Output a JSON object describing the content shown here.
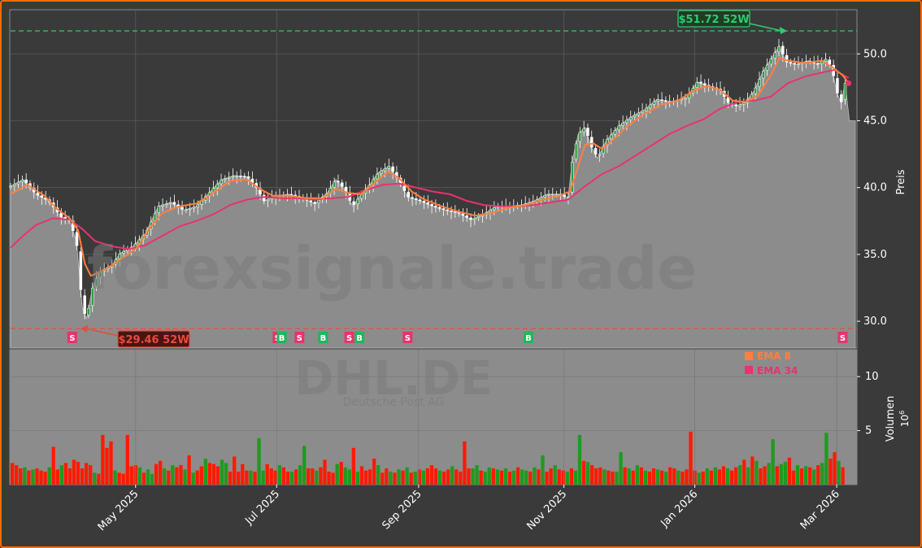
{
  "chart_data": {
    "type": "candlestick",
    "ticker": "DHL.DE",
    "company": "Deutsche Post AG",
    "watermark": "forexsignale.trade",
    "price_axis": {
      "label": "Preis",
      "ticks": [
        "30.0",
        "35.0",
        "40.0",
        "45.0",
        "50.0"
      ],
      "ylim": [
        28,
        53.3
      ]
    },
    "volume_axis": {
      "label": "Volumen",
      "exponent": "10",
      "exponent_power": "6",
      "ticks": [
        "5",
        "10"
      ],
      "ylim": [
        0,
        12.5
      ]
    },
    "x_ticks": [
      "May 2025",
      "Jul 2025",
      "Sep 2025",
      "Nov 2025",
      "Jan 2026",
      "Mar 2026"
    ],
    "high_52w": {
      "label": "$51.72 52W",
      "value": 51.72
    },
    "low_52w": {
      "label": "$29.46 52W",
      "value": 29.46
    },
    "legend": [
      {
        "name": "EMA 8",
        "color": "#ff7f3f"
      },
      {
        "name": "EMA 34",
        "color": "#e8336d"
      }
    ],
    "signals": [
      {
        "type": "S",
        "position": 0.073
      },
      {
        "type": "B",
        "position": 0.147
      },
      {
        "type": "S",
        "position": 0.316
      },
      {
        "type": "B",
        "position": 0.321
      },
      {
        "type": "S",
        "position": 0.342
      },
      {
        "type": "B",
        "position": 0.37
      },
      {
        "type": "S",
        "position": 0.401
      },
      {
        "type": "B",
        "position": 0.413
      },
      {
        "type": "S",
        "position": 0.47
      },
      {
        "type": "B",
        "position": 0.613
      },
      {
        "type": "S",
        "position": 0.985
      }
    ],
    "close_path": [
      [
        0,
        40.1
      ],
      [
        0.015,
        40.6
      ],
      [
        0.03,
        39.5
      ],
      [
        0.045,
        39.0
      ],
      [
        0.06,
        37.8
      ],
      [
        0.07,
        37.5
      ],
      [
        0.078,
        36.0
      ],
      [
        0.085,
        31.0
      ],
      [
        0.09,
        30.2
      ],
      [
        0.097,
        32.5
      ],
      [
        0.105,
        33.7
      ],
      [
        0.12,
        34.2
      ],
      [
        0.13,
        35.1
      ],
      [
        0.145,
        35.6
      ],
      [
        0.16,
        36.6
      ],
      [
        0.175,
        38.6
      ],
      [
        0.19,
        38.9
      ],
      [
        0.205,
        38.3
      ],
      [
        0.22,
        38.6
      ],
      [
        0.235,
        39.6
      ],
      [
        0.25,
        40.6
      ],
      [
        0.265,
        40.9
      ],
      [
        0.28,
        40.8
      ],
      [
        0.29,
        40.1
      ],
      [
        0.3,
        39.0
      ],
      [
        0.315,
        39.4
      ],
      [
        0.33,
        39.5
      ],
      [
        0.345,
        39.2
      ],
      [
        0.36,
        38.8
      ],
      [
        0.375,
        39.6
      ],
      [
        0.385,
        40.6
      ],
      [
        0.395,
        39.9
      ],
      [
        0.405,
        38.6
      ],
      [
        0.415,
        39.5
      ],
      [
        0.425,
        40.2
      ],
      [
        0.435,
        41.1
      ],
      [
        0.448,
        41.6
      ],
      [
        0.46,
        40.5
      ],
      [
        0.47,
        39.3
      ],
      [
        0.485,
        39.0
      ],
      [
        0.5,
        38.6
      ],
      [
        0.515,
        38.3
      ],
      [
        0.53,
        38.1
      ],
      [
        0.545,
        37.6
      ],
      [
        0.56,
        38.0
      ],
      [
        0.575,
        38.6
      ],
      [
        0.59,
        38.6
      ],
      [
        0.605,
        38.7
      ],
      [
        0.62,
        39.0
      ],
      [
        0.635,
        39.5
      ],
      [
        0.65,
        39.5
      ],
      [
        0.66,
        39.2
      ],
      [
        0.665,
        42.0
      ],
      [
        0.672,
        44.0
      ],
      [
        0.68,
        44.5
      ],
      [
        0.688,
        43.0
      ],
      [
        0.695,
        42.2
      ],
      [
        0.705,
        43.5
      ],
      [
        0.72,
        44.6
      ],
      [
        0.735,
        45.3
      ],
      [
        0.75,
        45.8
      ],
      [
        0.765,
        46.6
      ],
      [
        0.78,
        46.4
      ],
      [
        0.8,
        46.7
      ],
      [
        0.813,
        47.9
      ],
      [
        0.825,
        47.6
      ],
      [
        0.84,
        47.3
      ],
      [
        0.85,
        46.3
      ],
      [
        0.86,
        46.1
      ],
      [
        0.87,
        46.4
      ],
      [
        0.88,
        47.2
      ],
      [
        0.89,
        48.6
      ],
      [
        0.9,
        49.6
      ],
      [
        0.91,
        50.6
      ],
      [
        0.918,
        49.4
      ],
      [
        0.93,
        49.2
      ],
      [
        0.945,
        49.5
      ],
      [
        0.955,
        49.2
      ],
      [
        0.965,
        49.6
      ],
      [
        0.972,
        49.0
      ],
      [
        0.978,
        47.2
      ],
      [
        0.983,
        46.3
      ],
      [
        0.988,
        47.8
      ],
      [
        0.993,
        45.0
      ],
      [
        1.0,
        45.0
      ]
    ],
    "ema8": [
      [
        0,
        39.5
      ],
      [
        0.02,
        40.2
      ],
      [
        0.04,
        39.4
      ],
      [
        0.055,
        38.4
      ],
      [
        0.07,
        37.7
      ],
      [
        0.08,
        36.8
      ],
      [
        0.088,
        34.3
      ],
      [
        0.095,
        33.4
      ],
      [
        0.11,
        33.8
      ],
      [
        0.13,
        34.6
      ],
      [
        0.15,
        35.5
      ],
      [
        0.165,
        37.0
      ],
      [
        0.18,
        38.1
      ],
      [
        0.2,
        38.6
      ],
      [
        0.22,
        38.8
      ],
      [
        0.24,
        39.6
      ],
      [
        0.26,
        40.5
      ],
      [
        0.28,
        40.6
      ],
      [
        0.295,
        39.9
      ],
      [
        0.31,
        39.4
      ],
      [
        0.33,
        39.4
      ],
      [
        0.35,
        39.2
      ],
      [
        0.37,
        39.2
      ],
      [
        0.385,
        39.9
      ],
      [
        0.4,
        39.6
      ],
      [
        0.415,
        39.5
      ],
      [
        0.43,
        40.3
      ],
      [
        0.447,
        41.2
      ],
      [
        0.46,
        40.7
      ],
      [
        0.475,
        39.7
      ],
      [
        0.49,
        39.1
      ],
      [
        0.51,
        38.6
      ],
      [
        0.53,
        38.2
      ],
      [
        0.55,
        37.9
      ],
      [
        0.57,
        38.1
      ],
      [
        0.59,
        38.5
      ],
      [
        0.61,
        38.7
      ],
      [
        0.63,
        39.1
      ],
      [
        0.65,
        39.4
      ],
      [
        0.662,
        39.7
      ],
      [
        0.672,
        41.6
      ],
      [
        0.68,
        43.2
      ],
      [
        0.69,
        43.3
      ],
      [
        0.7,
        42.9
      ],
      [
        0.712,
        43.5
      ],
      [
        0.73,
        44.6
      ],
      [
        0.75,
        45.5
      ],
      [
        0.77,
        46.2
      ],
      [
        0.79,
        46.5
      ],
      [
        0.81,
        47.3
      ],
      [
        0.825,
        47.6
      ],
      [
        0.84,
        47.3
      ],
      [
        0.855,
        46.5
      ],
      [
        0.87,
        46.4
      ],
      [
        0.885,
        46.9
      ],
      [
        0.9,
        48.4
      ],
      [
        0.91,
        49.7
      ],
      [
        0.92,
        49.5
      ],
      [
        0.94,
        49.3
      ],
      [
        0.96,
        49.5
      ],
      [
        0.975,
        48.9
      ],
      [
        0.985,
        48.4
      ],
      [
        0.992,
        47.8
      ]
    ],
    "ema34": [
      [
        0,
        35.5
      ],
      [
        0.015,
        36.4
      ],
      [
        0.03,
        37.2
      ],
      [
        0.05,
        37.7
      ],
      [
        0.07,
        37.6
      ],
      [
        0.085,
        36.9
      ],
      [
        0.1,
        36.0
      ],
      [
        0.12,
        35.6
      ],
      [
        0.14,
        35.4
      ],
      [
        0.16,
        35.7
      ],
      [
        0.18,
        36.4
      ],
      [
        0.2,
        37.1
      ],
      [
        0.22,
        37.5
      ],
      [
        0.24,
        38.0
      ],
      [
        0.26,
        38.7
      ],
      [
        0.28,
        39.1
      ],
      [
        0.3,
        39.3
      ],
      [
        0.32,
        39.2
      ],
      [
        0.34,
        39.2
      ],
      [
        0.36,
        39.1
      ],
      [
        0.38,
        39.2
      ],
      [
        0.4,
        39.3
      ],
      [
        0.42,
        39.8
      ],
      [
        0.44,
        40.2
      ],
      [
        0.46,
        40.3
      ],
      [
        0.48,
        40.0
      ],
      [
        0.5,
        39.7
      ],
      [
        0.52,
        39.5
      ],
      [
        0.54,
        39.0
      ],
      [
        0.56,
        38.7
      ],
      [
        0.58,
        38.6
      ],
      [
        0.6,
        38.6
      ],
      [
        0.62,
        38.7
      ],
      [
        0.64,
        38.9
      ],
      [
        0.66,
        39.1
      ],
      [
        0.68,
        40.1
      ],
      [
        0.7,
        41.0
      ],
      [
        0.72,
        41.6
      ],
      [
        0.74,
        42.4
      ],
      [
        0.76,
        43.2
      ],
      [
        0.78,
        44.0
      ],
      [
        0.8,
        44.6
      ],
      [
        0.82,
        45.1
      ],
      [
        0.84,
        45.9
      ],
      [
        0.86,
        46.4
      ],
      [
        0.88,
        46.5
      ],
      [
        0.9,
        46.8
      ],
      [
        0.92,
        47.8
      ],
      [
        0.94,
        48.3
      ],
      [
        0.96,
        48.6
      ],
      [
        0.975,
        48.8
      ],
      [
        0.992,
        48.2
      ]
    ],
    "volume_bars": [
      [
        2.0,
        "r"
      ],
      [
        1.8,
        "r"
      ],
      [
        1.5,
        "r"
      ],
      [
        1.6,
        "g"
      ],
      [
        1.3,
        "r"
      ],
      [
        1.4,
        "g"
      ],
      [
        1.5,
        "r"
      ],
      [
        1.3,
        "r"
      ],
      [
        1.2,
        "r"
      ],
      [
        1.6,
        "g"
      ],
      [
        3.5,
        "r"
      ],
      [
        1.4,
        "r"
      ],
      [
        1.8,
        "g"
      ],
      [
        2.0,
        "r"
      ],
      [
        1.5,
        "r"
      ],
      [
        2.3,
        "r"
      ],
      [
        2.1,
        "r"
      ],
      [
        1.5,
        "r"
      ],
      [
        2.0,
        "r"
      ],
      [
        1.8,
        "r"
      ],
      [
        1.1,
        "g"
      ],
      [
        1.0,
        "r"
      ],
      [
        4.6,
        "r"
      ],
      [
        3.4,
        "r"
      ],
      [
        4.0,
        "r"
      ],
      [
        1.3,
        "g"
      ],
      [
        1.1,
        "r"
      ],
      [
        1.0,
        "r"
      ],
      [
        4.6,
        "r"
      ],
      [
        1.7,
        "r"
      ],
      [
        1.8,
        "r"
      ],
      [
        1.6,
        "g"
      ],
      [
        1.1,
        "r"
      ],
      [
        1.4,
        "g"
      ],
      [
        1.0,
        "g"
      ],
      [
        1.9,
        "r"
      ],
      [
        2.2,
        "r"
      ],
      [
        1.5,
        "g"
      ],
      [
        1.3,
        "r"
      ],
      [
        1.8,
        "g"
      ],
      [
        1.6,
        "r"
      ],
      [
        1.8,
        "r"
      ],
      [
        1.4,
        "g"
      ],
      [
        2.7,
        "r"
      ],
      [
        1.1,
        "g"
      ],
      [
        1.3,
        "r"
      ],
      [
        1.7,
        "r"
      ],
      [
        2.4,
        "g"
      ],
      [
        2.0,
        "r"
      ],
      [
        1.9,
        "r"
      ],
      [
        1.7,
        "r"
      ],
      [
        2.3,
        "g"
      ],
      [
        2.0,
        "g"
      ],
      [
        1.2,
        "r"
      ],
      [
        2.6,
        "r"
      ],
      [
        1.2,
        "r"
      ],
      [
        1.9,
        "r"
      ],
      [
        1.3,
        "r"
      ],
      [
        1.3,
        "g"
      ],
      [
        1.2,
        "r"
      ],
      [
        4.3,
        "g"
      ],
      [
        1.3,
        "g"
      ],
      [
        1.9,
        "r"
      ],
      [
        1.5,
        "r"
      ],
      [
        1.3,
        "r"
      ],
      [
        1.8,
        "g"
      ],
      [
        1.6,
        "r"
      ],
      [
        1.2,
        "r"
      ],
      [
        1.2,
        "g"
      ],
      [
        1.4,
        "r"
      ],
      [
        1.8,
        "g"
      ],
      [
        3.6,
        "g"
      ],
      [
        1.5,
        "r"
      ],
      [
        1.5,
        "r"
      ],
      [
        1.3,
        "g"
      ],
      [
        1.6,
        "r"
      ],
      [
        2.3,
        "r"
      ],
      [
        1.2,
        "r"
      ],
      [
        1.1,
        "r"
      ],
      [
        1.9,
        "g"
      ],
      [
        2.1,
        "r"
      ],
      [
        1.6,
        "g"
      ],
      [
        1.4,
        "g"
      ],
      [
        3.4,
        "r"
      ],
      [
        1.2,
        "g"
      ],
      [
        1.7,
        "r"
      ],
      [
        1.3,
        "r"
      ],
      [
        1.4,
        "r"
      ],
      [
        2.4,
        "r"
      ],
      [
        1.8,
        "g"
      ],
      [
        1.1,
        "r"
      ],
      [
        1.5,
        "r"
      ],
      [
        1.2,
        "g"
      ],
      [
        1.1,
        "r"
      ],
      [
        1.4,
        "g"
      ],
      [
        1.3,
        "r"
      ],
      [
        1.6,
        "g"
      ],
      [
        1.1,
        "r"
      ],
      [
        1.2,
        "g"
      ],
      [
        1.4,
        "r"
      ],
      [
        1.3,
        "g"
      ],
      [
        1.5,
        "r"
      ],
      [
        1.8,
        "r"
      ],
      [
        1.5,
        "r"
      ],
      [
        1.3,
        "g"
      ],
      [
        1.2,
        "r"
      ],
      [
        1.4,
        "r"
      ],
      [
        1.7,
        "g"
      ],
      [
        1.4,
        "r"
      ],
      [
        1.2,
        "r"
      ],
      [
        4.0,
        "r"
      ],
      [
        1.5,
        "r"
      ],
      [
        1.5,
        "g"
      ],
      [
        1.8,
        "g"
      ],
      [
        1.3,
        "r"
      ],
      [
        1.2,
        "g"
      ],
      [
        1.6,
        "g"
      ],
      [
        1.5,
        "r"
      ],
      [
        1.4,
        "g"
      ],
      [
        1.3,
        "r"
      ],
      [
        1.5,
        "g"
      ],
      [
        1.2,
        "r"
      ],
      [
        1.3,
        "g"
      ],
      [
        1.6,
        "r"
      ],
      [
        1.4,
        "g"
      ],
      [
        1.3,
        "g"
      ],
      [
        1.2,
        "r"
      ],
      [
        1.6,
        "g"
      ],
      [
        1.4,
        "r"
      ],
      [
        2.7,
        "g"
      ],
      [
        1.2,
        "r"
      ],
      [
        1.5,
        "r"
      ],
      [
        1.8,
        "g"
      ],
      [
        1.4,
        "r"
      ],
      [
        1.3,
        "r"
      ],
      [
        1.2,
        "g"
      ],
      [
        1.5,
        "r"
      ],
      [
        1.3,
        "g"
      ],
      [
        4.6,
        "g"
      ],
      [
        2.2,
        "r"
      ],
      [
        2.1,
        "g"
      ],
      [
        1.8,
        "r"
      ],
      [
        1.5,
        "r"
      ],
      [
        1.6,
        "r"
      ],
      [
        1.4,
        "g"
      ],
      [
        1.3,
        "r"
      ],
      [
        1.2,
        "r"
      ],
      [
        1.2,
        "g"
      ],
      [
        3.0,
        "g"
      ],
      [
        1.6,
        "r"
      ],
      [
        1.5,
        "g"
      ],
      [
        1.3,
        "r"
      ],
      [
        1.8,
        "g"
      ],
      [
        1.6,
        "r"
      ],
      [
        1.3,
        "g"
      ],
      [
        1.2,
        "r"
      ],
      [
        1.5,
        "r"
      ],
      [
        1.4,
        "g"
      ],
      [
        1.3,
        "r"
      ],
      [
        1.2,
        "g"
      ],
      [
        1.6,
        "r"
      ],
      [
        1.5,
        "r"
      ],
      [
        1.3,
        "g"
      ],
      [
        1.2,
        "r"
      ],
      [
        1.4,
        "r"
      ],
      [
        4.9,
        "r"
      ],
      [
        1.3,
        "r"
      ],
      [
        1.1,
        "g"
      ],
      [
        1.2,
        "r"
      ],
      [
        1.5,
        "g"
      ],
      [
        1.3,
        "r"
      ],
      [
        1.6,
        "g"
      ],
      [
        1.4,
        "r"
      ],
      [
        1.7,
        "r"
      ],
      [
        1.5,
        "g"
      ],
      [
        1.3,
        "r"
      ],
      [
        1.6,
        "r"
      ],
      [
        1.8,
        "g"
      ],
      [
        2.3,
        "r"
      ],
      [
        1.6,
        "g"
      ],
      [
        2.6,
        "r"
      ],
      [
        2.2,
        "g"
      ],
      [
        1.5,
        "r"
      ],
      [
        1.7,
        "r"
      ],
      [
        2.0,
        "g"
      ],
      [
        4.2,
        "g"
      ],
      [
        1.7,
        "r"
      ],
      [
        1.9,
        "g"
      ],
      [
        2.1,
        "g"
      ],
      [
        2.5,
        "r"
      ],
      [
        1.3,
        "r"
      ],
      [
        1.8,
        "g"
      ],
      [
        1.5,
        "r"
      ],
      [
        1.7,
        "g"
      ],
      [
        1.6,
        "r"
      ],
      [
        1.4,
        "g"
      ],
      [
        1.8,
        "r"
      ],
      [
        2.0,
        "g"
      ],
      [
        4.8,
        "g"
      ],
      [
        2.4,
        "r"
      ],
      [
        3.0,
        "r"
      ],
      [
        2.2,
        "g"
      ],
      [
        1.6,
        "r"
      ]
    ]
  }
}
